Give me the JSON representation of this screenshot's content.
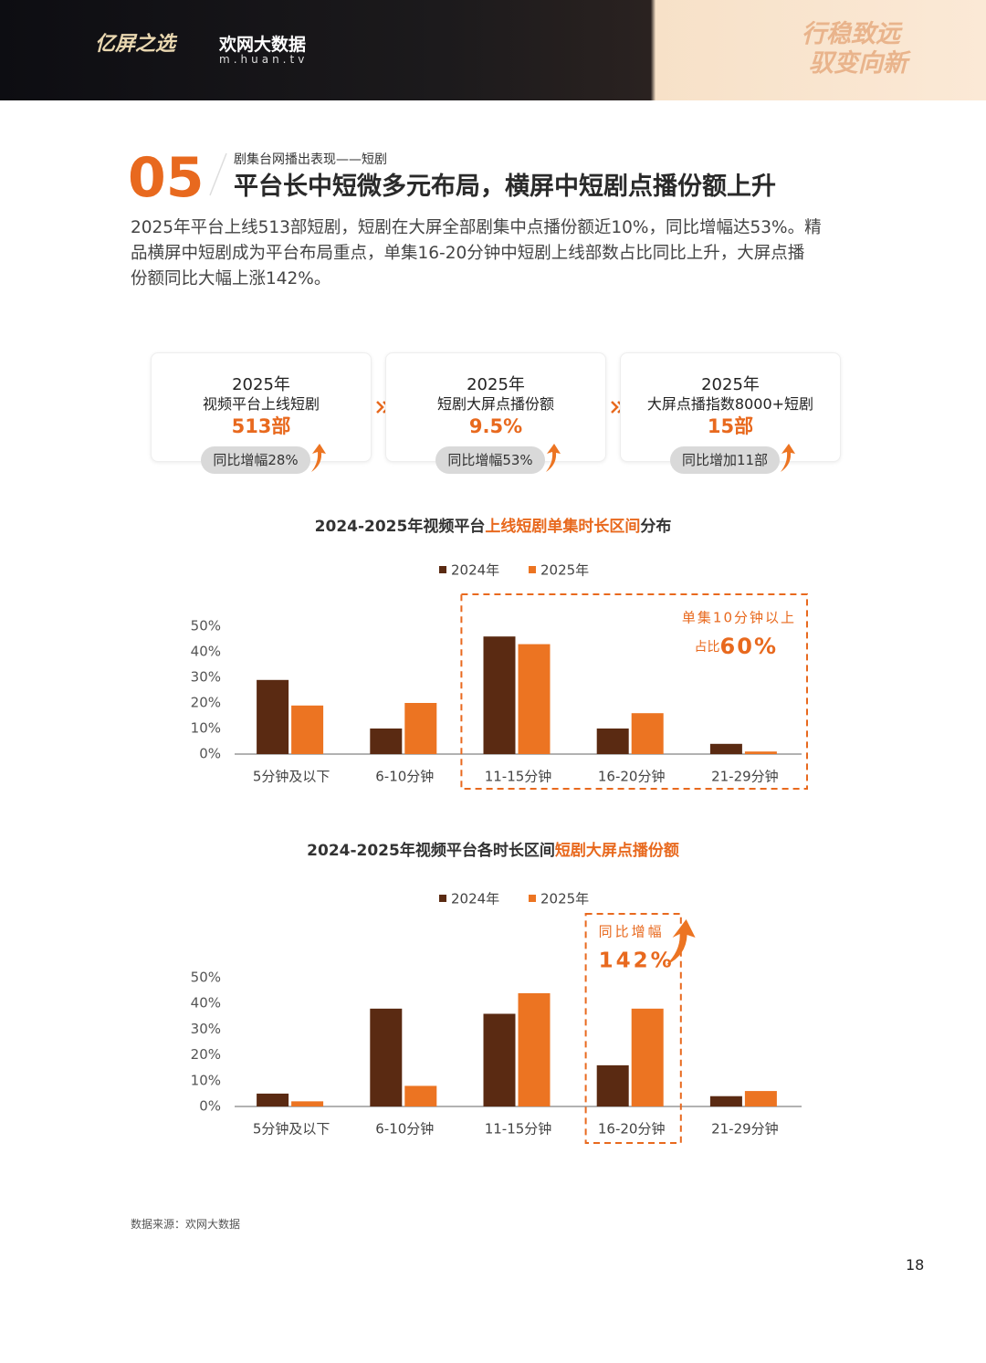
{
  "header": {
    "logo": "亿屏之选",
    "brand": "欢网大数据",
    "url": "m.huan.tv",
    "slogan": [
      "行稳致远",
      "驭变向新"
    ]
  },
  "section": {
    "number": "05",
    "subtitle": "剧集台网播出表现——短剧",
    "title": "平台长中短微多元布局，横屏中短剧点播份额上升"
  },
  "paragraph": [
    "2025年平台上线513部短剧，短剧在大屏全部剧集中点播份额近10%，同比增幅达53%。精",
    "品横屏中短剧成为平台布局重点，单集16-20分钟中短剧上线部数占比同比上升，大屏点播",
    "份额同比大幅上涨142%。"
  ],
  "cards": [
    {
      "year": "2025年",
      "label": "视频平台上线短剧",
      "value": "513部",
      "change": "同比增幅28%"
    },
    {
      "year": "2025年",
      "label": "短剧大屏点播份额",
      "value": "9.5%",
      "change": "同比增幅53%"
    },
    {
      "year": "2025年",
      "label": "大屏点播指数8000+短剧",
      "value": "15部",
      "change": "同比增加11部"
    }
  ],
  "chart_data": [
    {
      "type": "bar",
      "title": [
        "2024-2025年视频平台",
        "上线短剧单集时长区间",
        "分布"
      ],
      "categories": [
        "5分钟及以下",
        "6-10分钟",
        "11-15分钟",
        "16-20分钟",
        "21-29分钟"
      ],
      "series": [
        {
          "name": "2024年",
          "color": "#5a2a12",
          "values": [
            29,
            10,
            46,
            10,
            4
          ]
        },
        {
          "name": "2025年",
          "color": "#ec7422",
          "values": [
            19,
            20,
            43,
            16,
            1
          ]
        }
      ],
      "ylim": [
        0,
        50
      ],
      "yticks": [
        {
          "value": 0,
          "label": "0%"
        },
        {
          "value": 10,
          "label": "10%"
        },
        {
          "value": 20,
          "label": "20%"
        },
        {
          "value": 30,
          "label": "30%"
        },
        {
          "value": 40,
          "label": "40%"
        },
        {
          "value": 50,
          "label": "50%"
        }
      ],
      "highlight": [
        2,
        4
      ],
      "annotations": [
        "单集10分钟以上",
        "占比",
        "60%"
      ]
    },
    {
      "type": "bar",
      "title": [
        "2024-2025年视频平台各时长区间",
        "短剧大屏点播份额"
      ],
      "categories": [
        "5分钟及以下",
        "6-10分钟",
        "11-15分钟",
        "16-20分钟",
        "21-29分钟"
      ],
      "series": [
        {
          "name": "2024年",
          "color": "#5a2a12",
          "values": [
            5,
            38,
            36,
            16,
            4
          ]
        },
        {
          "name": "2025年",
          "color": "#ec7422",
          "values": [
            2,
            8,
            44,
            38,
            6
          ]
        }
      ],
      "ylim": [
        0,
        50
      ],
      "yticks": [
        {
          "value": 0,
          "label": "0%"
        },
        {
          "value": 10,
          "label": "10%"
        },
        {
          "value": 20,
          "label": "20%"
        },
        {
          "value": 30,
          "label": "30%"
        },
        {
          "value": 40,
          "label": "40%"
        },
        {
          "value": 50,
          "label": "50%"
        }
      ],
      "highlight": [
        3,
        3
      ],
      "annotations": [
        "同比增幅",
        "142%"
      ]
    }
  ],
  "source": "数据来源：欢网大数据",
  "page_number": "18"
}
